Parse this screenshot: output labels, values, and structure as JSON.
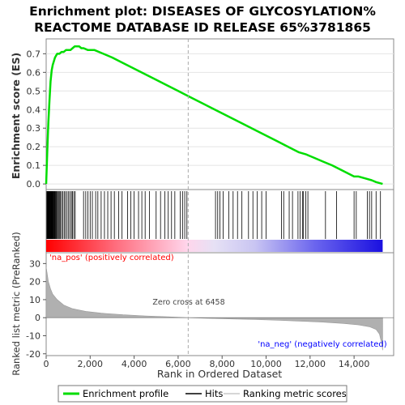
{
  "chart_data": {
    "type": "line",
    "title": "Enrichment plot: DISEASES OF GLYCOSYLATION%\nREACTOME DATABASE ID RELEASE 65%3781865",
    "title_lines": [
      "Enrichment plot: DISEASES OF GLYCOSYLATION%",
      "REACTOME DATABASE ID RELEASE 65%3781865"
    ],
    "enrichment_panel": {
      "ylabel": "Enrichment score (ES)",
      "ylim": [
        -0.03,
        0.78
      ],
      "yticks": [
        0.0,
        0.1,
        0.2,
        0.3,
        0.4,
        0.5,
        0.6,
        0.7
      ],
      "ytick_labels": [
        "0.0",
        "0.1",
        "0.2",
        "0.3",
        "0.4",
        "0.5",
        "0.6",
        "0.7"
      ],
      "line_color": "#00dd00",
      "x": [
        0,
        50,
        100,
        150,
        200,
        250,
        300,
        350,
        400,
        450,
        500,
        600,
        700,
        800,
        900,
        1000,
        1100,
        1200,
        1300,
        1400,
        1500,
        1600,
        1700,
        1900,
        2200,
        2600,
        3000,
        3500,
        4000,
        4500,
        5000,
        5500,
        6000,
        6500,
        7000,
        7500,
        8000,
        8500,
        9000,
        9500,
        10000,
        10500,
        11000,
        11500,
        11800,
        12200,
        12600,
        13000,
        13500,
        14000,
        14200,
        14500,
        14800,
        15000,
        15300
      ],
      "y": [
        0.0,
        0.18,
        0.33,
        0.45,
        0.55,
        0.61,
        0.64,
        0.66,
        0.68,
        0.69,
        0.7,
        0.7,
        0.71,
        0.71,
        0.72,
        0.72,
        0.72,
        0.73,
        0.74,
        0.74,
        0.74,
        0.73,
        0.73,
        0.72,
        0.72,
        0.7,
        0.68,
        0.65,
        0.62,
        0.59,
        0.56,
        0.53,
        0.5,
        0.47,
        0.44,
        0.41,
        0.38,
        0.35,
        0.32,
        0.29,
        0.26,
        0.23,
        0.2,
        0.17,
        0.16,
        0.14,
        0.12,
        0.1,
        0.07,
        0.04,
        0.04,
        0.03,
        0.02,
        0.01,
        0.0
      ]
    },
    "hits_panel": {
      "hit_positions": [
        30,
        45,
        60,
        75,
        90,
        105,
        120,
        135,
        150,
        165,
        180,
        200,
        215,
        230,
        250,
        270,
        290,
        310,
        330,
        350,
        370,
        390,
        420,
        450,
        480,
        520,
        560,
        600,
        650,
        700,
        760,
        820,
        880,
        950,
        1020,
        1080,
        1150,
        1200,
        1260,
        1320,
        1700,
        1800,
        1900,
        2000,
        2100,
        2250,
        2350,
        2500,
        2650,
        2800,
        2950,
        3100,
        3300,
        3450,
        3700,
        3850,
        4000,
        4200,
        4350,
        4500,
        4700,
        5000,
        5200,
        5400,
        5550,
        5700,
        5850,
        6100,
        6200,
        6300,
        6400,
        7700,
        7800,
        7900,
        8050,
        8300,
        8500,
        8700,
        8900,
        9200,
        9400,
        9600,
        9800,
        10000,
        10700,
        10800,
        11050,
        11200,
        11450,
        11550,
        11650,
        11700,
        11800,
        11900,
        12700,
        13200,
        14000,
        14100,
        14600,
        14700,
        14800,
        15000,
        15200
      ],
      "gradient_stops": [
        {
          "offset": 0.0,
          "color": "#ff0000"
        },
        {
          "offset": 0.2,
          "color": "#ff6a7a"
        },
        {
          "offset": 0.42,
          "color": "#ffd6ec"
        },
        {
          "offset": 0.5,
          "color": "#e6e1f5"
        },
        {
          "offset": 0.62,
          "color": "#c9c5f2"
        },
        {
          "offset": 0.8,
          "color": "#6a64ee"
        },
        {
          "offset": 1.0,
          "color": "#1a10e0"
        }
      ]
    },
    "metric_panel": {
      "ylabel": "Ranked list metric (PreRanked)",
      "ylim": [
        -21,
        36
      ],
      "yticks": [
        -20,
        -10,
        0,
        10,
        20,
        30
      ],
      "ytick_labels": [
        "-20",
        "-10",
        "0",
        "10",
        "20",
        "30"
      ],
      "fill_color": "#b0b0b0",
      "x": [
        0,
        50,
        100,
        200,
        300,
        500,
        800,
        1200,
        1800,
        2500,
        3500,
        4500,
        5500,
        6458,
        7500,
        8500,
        9500,
        10500,
        11500,
        12500,
        13500,
        14200,
        14700,
        15000,
        15150,
        15250,
        15300
      ],
      "y": [
        28,
        24,
        20,
        16,
        13,
        10,
        7,
        5,
        3.5,
        2.5,
        1.6,
        1.0,
        0.5,
        0.0,
        -0.4,
        -0.7,
        -1.0,
        -1.4,
        -1.9,
        -2.4,
        -3.2,
        -4.0,
        -5.0,
        -6.5,
        -9.0,
        -14.0,
        -18.0
      ],
      "zero_cross_label": "Zero cross at 6458",
      "zero_cross_x": 6458,
      "pos_label": "'na_pos' (positively correlated)",
      "neg_label": "'na_neg' (negatively correlated)",
      "pos_color": "#ff0000",
      "neg_color": "#0000ff"
    },
    "xlabel": "Rank in Ordered Dataset",
    "xlim": [
      0,
      15800
    ],
    "xticks": [
      0,
      2000,
      4000,
      6000,
      8000,
      10000,
      12000,
      14000
    ],
    "xtick_labels": [
      "0",
      "2,000",
      "4,000",
      "6,000",
      "8,000",
      "10,000",
      "12,000",
      "14,000"
    ],
    "legend": {
      "position": "bottom",
      "items": [
        {
          "label": "Enrichment profile",
          "color": "#00dd00",
          "kind": "line"
        },
        {
          "label": "Hits",
          "color": "#000000",
          "kind": "line"
        },
        {
          "label": "Ranking metric scores",
          "color": "#c8c8c8",
          "kind": "line"
        }
      ]
    }
  }
}
